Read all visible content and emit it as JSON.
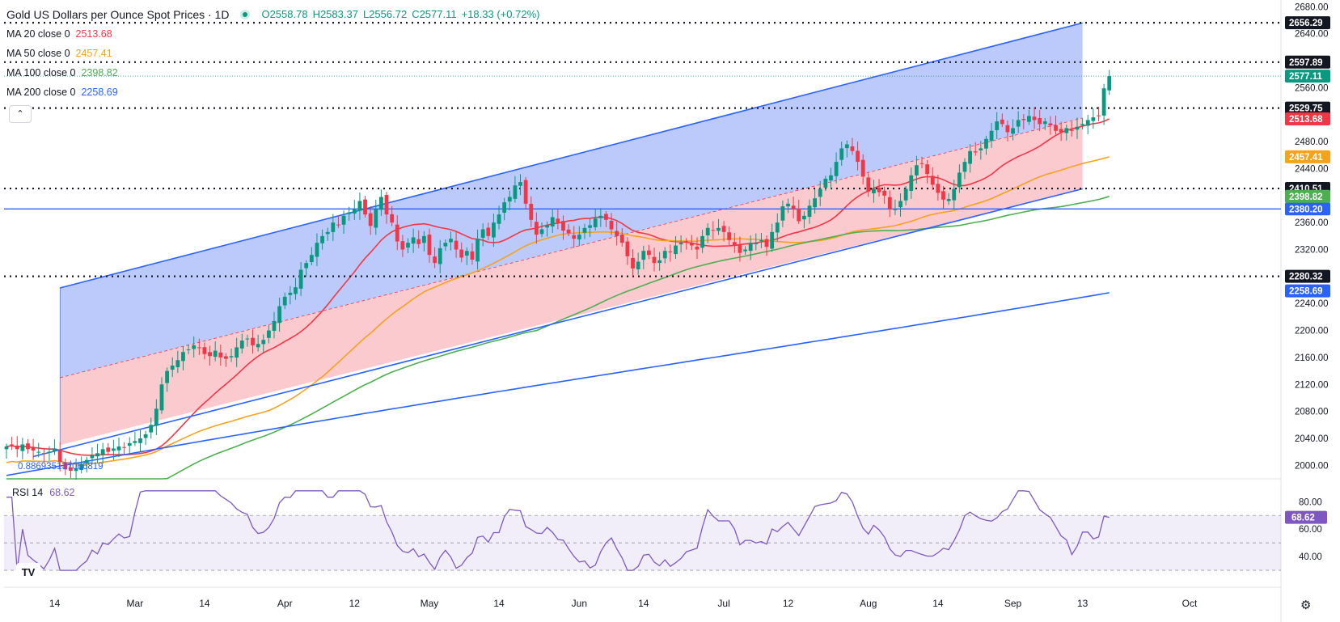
{
  "header": {
    "title": "Gold US Dollars per Ounce Spot Prices · 1D",
    "open": "O2558.78",
    "high": "H2583.37",
    "low": "L2556.72",
    "close": "C2577.11",
    "change": "+18.33 (+0.72%)"
  },
  "moving_averages": [
    {
      "label": "MA 20 close 0",
      "value": "2513.68",
      "color": "#f23645"
    },
    {
      "label": "MA 50 close 0",
      "value": "2457.41",
      "color": "#f7a21b"
    },
    {
      "label": "MA 100 close 0",
      "value": "2398.82",
      "color": "#4caf50"
    },
    {
      "label": "MA 200 close 0",
      "value": "2258.69",
      "color": "#2962ff"
    }
  ],
  "collapse_icon": "chevron-up-icon",
  "fib_label": "0.886935137066819",
  "rsi": {
    "label": "RSI 14",
    "value": "68.62",
    "color": "#7e57c2",
    "levels": [
      80,
      60,
      40
    ],
    "upper": 70,
    "mid": 50,
    "lower": 30
  },
  "settings_icon": "gear-icon",
  "logo_text": "TV",
  "colors": {
    "up": "#089981",
    "down": "#f23645",
    "channel_line": "#2962ff",
    "channel_upper_fill": "#b8c7fb",
    "channel_lower_fill": "#fbc7cc",
    "dotted": "#131722"
  },
  "chart_data": {
    "type": "candlestick",
    "title": "Gold US Dollars per Ounce Spot Prices · 1D",
    "ylim": [
      1980,
      2690
    ],
    "y_ticks": [
      2680.0,
      2640.0,
      2600.0,
      2560.0,
      2520.0,
      2480.0,
      2440.0,
      2400.0,
      2360.0,
      2320.0,
      2280.0,
      2240.0,
      2200.0,
      2160.0,
      2120.0,
      2080.0,
      2040.0,
      2000.0
    ],
    "y_tick_labels": [
      "2680.00",
      "2640.00",
      "2600.00",
      "2560.00",
      "2520.00",
      "2480.00",
      "2440.00",
      "2400.00",
      "2360.00",
      "2320.00",
      "2280.00",
      "2240.00",
      "2200.00",
      "2160.00",
      "2120.00",
      "2080.00",
      "2040.00",
      "2000.00"
    ],
    "x_tick_labels": [
      "14",
      "Mar",
      "14",
      "Apr",
      "12",
      "May",
      "14",
      "Jun",
      "14",
      "Jul",
      "12",
      "Aug",
      "14",
      "Sep",
      "13",
      "Oct"
    ],
    "x_tick_days": [
      9,
      24,
      37,
      52,
      65,
      79,
      92,
      107,
      119,
      134,
      146,
      161,
      174,
      188,
      201,
      221
    ],
    "last_day": 201,
    "close_series": [
      2028,
      2030,
      2024,
      2031,
      2024,
      2022,
      2020,
      2017,
      2020,
      2025,
      2005,
      1994,
      1992,
      1996,
      2002,
      2008,
      2015,
      2018,
      2024,
      2020,
      2025,
      2028,
      2026,
      2033,
      2036,
      2040,
      2046,
      2060,
      2084,
      2120,
      2140,
      2148,
      2156,
      2168,
      2172,
      2178,
      2175,
      2165,
      2162,
      2170,
      2160,
      2158,
      2162,
      2175,
      2185,
      2188,
      2178,
      2180,
      2186,
      2200,
      2214,
      2236,
      2250,
      2256,
      2264,
      2290,
      2300,
      2312,
      2330,
      2340,
      2346,
      2360,
      2356,
      2370,
      2375,
      2380,
      2392,
      2372,
      2355,
      2380,
      2398,
      2372,
      2360,
      2332,
      2320,
      2330,
      2338,
      2328,
      2340,
      2312,
      2300,
      2322,
      2330,
      2336,
      2320,
      2308,
      2318,
      2305,
      2336,
      2350,
      2340,
      2360,
      2372,
      2390,
      2398,
      2415,
      2420,
      2388,
      2364,
      2342,
      2350,
      2356,
      2368,
      2360,
      2348,
      2344,
      2336,
      2342,
      2352,
      2356,
      2366,
      2370,
      2364,
      2350,
      2340,
      2330,
      2310,
      2292,
      2302,
      2318,
      2312,
      2300,
      2304,
      2318,
      2316,
      2326,
      2330,
      2332,
      2326,
      2320,
      2340,
      2352,
      2348,
      2352,
      2346,
      2334,
      2326,
      2315,
      2320,
      2330,
      2330,
      2334,
      2324,
      2346,
      2360,
      2384,
      2388,
      2380,
      2362,
      2370,
      2385,
      2396,
      2410,
      2425,
      2430,
      2450,
      2470,
      2476,
      2466,
      2450,
      2428,
      2406,
      2410,
      2405,
      2400,
      2380,
      2380,
      2392,
      2410,
      2430,
      2445,
      2447,
      2432,
      2416,
      2404,
      2394,
      2395,
      2410,
      2434,
      2450,
      2466,
      2464,
      2470,
      2484,
      2496,
      2510,
      2506,
      2494,
      2500,
      2512,
      2512,
      2518,
      2512,
      2506,
      2510,
      2504,
      2496,
      2494,
      2500,
      2496,
      2502,
      2506,
      2512,
      2516,
      2518,
      2559,
      2577
    ],
    "series": [
      {
        "name": "MA 20 close 0",
        "last": 2513.68
      },
      {
        "name": "MA 50 close 0",
        "last": 2457.41
      },
      {
        "name": "MA 100 close 0",
        "last": 2398.82
      },
      {
        "name": "MA 200 close 0",
        "last": 2258.69
      }
    ],
    "horizontal_levels": [
      {
        "value": 2656.29,
        "label": "2656.29",
        "style": "dotted"
      },
      {
        "value": 2597.89,
        "label": "2597.89",
        "style": "dotted"
      },
      {
        "value": 2529.75,
        "label": "2529.75",
        "style": "dotted"
      },
      {
        "value": 2410.51,
        "label": "2410.51",
        "style": "dotted"
      },
      {
        "value": 2380.2,
        "label": "2380.20",
        "style": "solid"
      },
      {
        "value": 2280.32,
        "label": "2280.32",
        "style": "dotted"
      }
    ],
    "price_badges": [
      {
        "value": 2577.11,
        "label": "2577.11",
        "color": "#089981"
      },
      {
        "value": 2513.68,
        "label": "2513.68",
        "color": "#f23645"
      },
      {
        "value": 2457.41,
        "label": "2457.41",
        "color": "#f7a21b"
      },
      {
        "value": 2398.82,
        "label": "2398.82",
        "color": "#4caf50"
      },
      {
        "value": 2258.69,
        "label": "2258.69",
        "color": "#2962ff"
      }
    ],
    "channel": {
      "start_day": 10,
      "end_day": 201,
      "upper": [
        2263,
        2656
      ],
      "middle": [
        2130,
        2515
      ],
      "lower": [
        2030,
        2410
      ]
    }
  }
}
